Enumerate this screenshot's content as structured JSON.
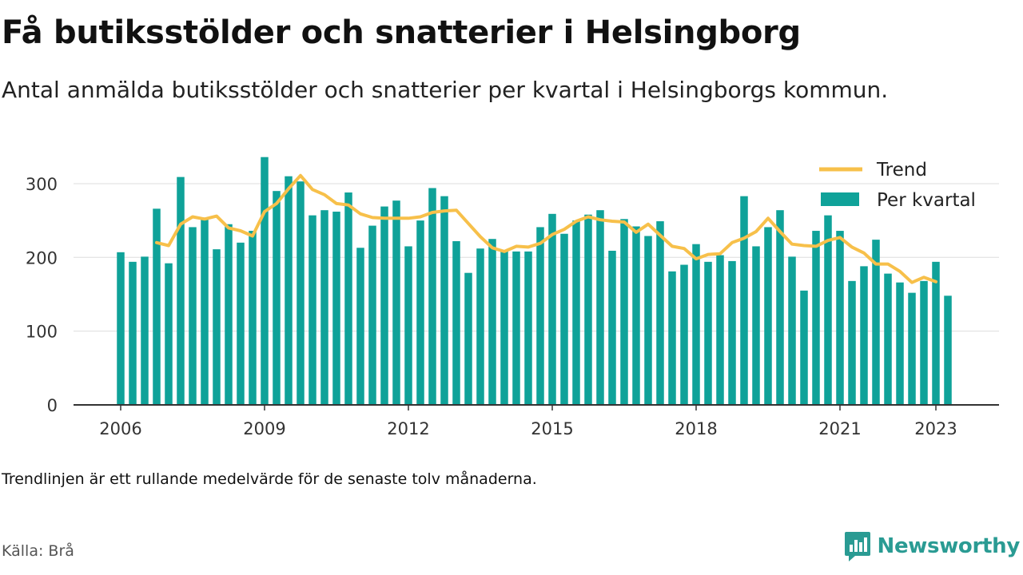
{
  "title": "Få butiksstölder och snatterier i Helsingborg",
  "subtitle": "Antal anmälda butiksstölder och snatterier per kvartal i Helsingborgs kommun.",
  "note": "Trendlinjen är ett rullande medelvärde för de senaste tolv månaderna.",
  "source": "Källa: Brå",
  "brand": {
    "name": "Newsworthy",
    "icon": "newsworthy-logo-icon"
  },
  "colors": {
    "bar": "#0fa299",
    "trend": "#f7c04a",
    "grid": "#dddddd",
    "axis": "#333333"
  },
  "chart_data": {
    "type": "bar",
    "ylim": [
      0,
      340
    ],
    "yticks": [
      0,
      100,
      200,
      300
    ],
    "x_start": 2006,
    "x_period": "quarter",
    "xticks": [
      2006,
      2009,
      2012,
      2015,
      2018,
      2021,
      2023
    ],
    "grid": true,
    "legend": {
      "position": "top-right",
      "entries": [
        {
          "key": "trend",
          "label": "Trend"
        },
        {
          "key": "quarterly",
          "label": "Per kvartal"
        }
      ]
    },
    "series": [
      {
        "name": "Per kvartal",
        "kind": "bar",
        "values": [
          207,
          194,
          201,
          266,
          192,
          309,
          241,
          254,
          211,
          245,
          220,
          236,
          336,
          290,
          310,
          303,
          257,
          264,
          262,
          288,
          213,
          243,
          269,
          277,
          215,
          250,
          294,
          283,
          222,
          179,
          212,
          225,
          208,
          208,
          208,
          241,
          259,
          232,
          250,
          258,
          264,
          209,
          252,
          242,
          229,
          249,
          181,
          190,
          218,
          194,
          203,
          195,
          283,
          215,
          241,
          264,
          201,
          155,
          236,
          257,
          236,
          168,
          188,
          224,
          178,
          166,
          152,
          168,
          194,
          148
        ]
      },
      {
        "name": "Trend",
        "kind": "line",
        "start_index": 3,
        "values": [
          220,
          216,
          245,
          255,
          252,
          256,
          240,
          236,
          229,
          262,
          273,
          293,
          311,
          292,
          285,
          273,
          271,
          259,
          254,
          253,
          253,
          253,
          255,
          261,
          263,
          264,
          246,
          228,
          213,
          208,
          215,
          214,
          219,
          231,
          238,
          249,
          255,
          251,
          249,
          248,
          234,
          245,
          230,
          215,
          212,
          198,
          204,
          205,
          220,
          226,
          235,
          253,
          235,
          218,
          216,
          215,
          223,
          227,
          214,
          206,
          191,
          191,
          181,
          166,
          173,
          167
        ]
      }
    ]
  }
}
